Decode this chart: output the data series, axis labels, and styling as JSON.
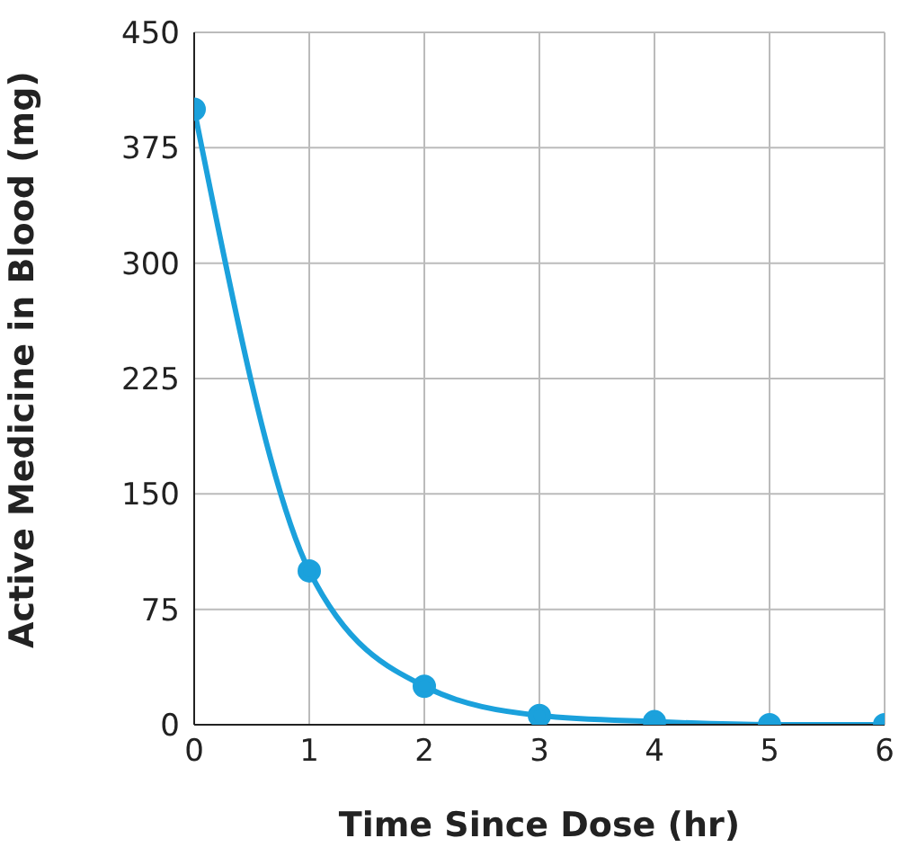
{
  "chart_data": {
    "type": "line",
    "xlabel": "Time Since Dose (hr)",
    "ylabel": "Active Medicine in Blood (mg)",
    "x": [
      0,
      1,
      2,
      3,
      4,
      5,
      6
    ],
    "series": [
      {
        "color": "#1ba1dc",
        "values": [
          400,
          100,
          25,
          6,
          2,
          0,
          0
        ]
      }
    ],
    "xlim": [
      0,
      6
    ],
    "xticks": [
      0,
      1,
      2,
      3,
      4,
      5,
      6
    ],
    "ylim": [
      0,
      450
    ],
    "yticks": [
      0,
      75,
      150,
      225,
      300,
      375,
      450
    ],
    "grid": true,
    "marker": "circle",
    "line_style": "solid"
  }
}
